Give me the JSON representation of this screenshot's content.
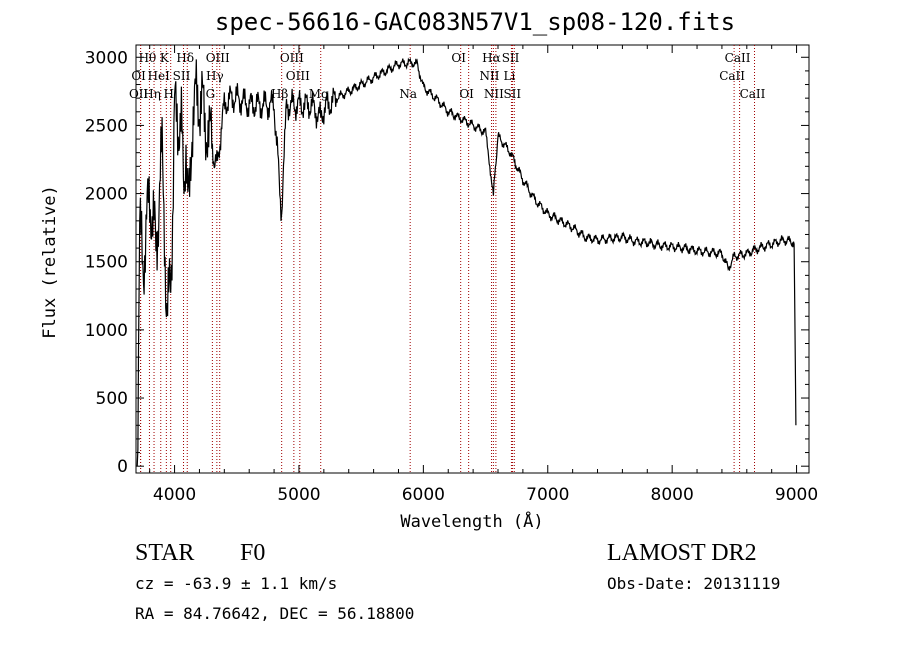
{
  "chart_data": {
    "type": "line",
    "title": "spec-56616-GAC083N57V1_sp08-120.fits",
    "xlabel": "Wavelength (Å)",
    "ylabel": "Flux (relative)",
    "xlim": [
      3690,
      9100
    ],
    "ylim": [
      -50,
      3090
    ],
    "xticks": [
      4000,
      5000,
      6000,
      7000,
      8000,
      9000
    ],
    "yticks": [
      0,
      500,
      1000,
      1500,
      2000,
      2500,
      3000
    ],
    "grid": false,
    "series": [
      {
        "name": "flux",
        "x": [
          3700,
          3720,
          3750,
          3800,
          3850,
          3900,
          3934,
          3969,
          4000,
          4050,
          4102,
          4150,
          4200,
          4250,
          4304,
          4340,
          4400,
          4450,
          4500,
          4600,
          4700,
          4800,
          4861,
          4900,
          5000,
          5100,
          5175,
          5200,
          5300,
          5400,
          5500,
          5600,
          5700,
          5800,
          5900,
          5950,
          6000,
          6100,
          6200,
          6300,
          6400,
          6500,
          6563,
          6600,
          6700,
          6800,
          6900,
          7000,
          7100,
          7200,
          7300,
          7400,
          7500,
          7600,
          7700,
          7800,
          7900,
          8000,
          8100,
          8200,
          8300,
          8400,
          8450,
          8500,
          8600,
          8700,
          8800,
          8900,
          8980,
          8995
        ],
        "y": [
          0,
          1700,
          1500,
          2000,
          1600,
          2300,
          1300,
          1200,
          2600,
          2500,
          1950,
          2650,
          2700,
          2550,
          2300,
          2200,
          2650,
          2700,
          2700,
          2650,
          2650,
          2650,
          1850,
          2650,
          2650,
          2650,
          2550,
          2620,
          2700,
          2750,
          2800,
          2850,
          2900,
          2950,
          2960,
          2950,
          2780,
          2700,
          2600,
          2550,
          2500,
          2450,
          2000,
          2420,
          2300,
          2100,
          1950,
          1850,
          1800,
          1750,
          1680,
          1660,
          1670,
          1680,
          1650,
          1640,
          1620,
          1610,
          1600,
          1580,
          1570,
          1560,
          1450,
          1540,
          1560,
          1600,
          1630,
          1660,
          1640,
          300
        ]
      }
    ],
    "line_markers": [
      {
        "label": "Hθ",
        "wl": 3798,
        "row": 0
      },
      {
        "label": "K",
        "wl": 3934,
        "row": 0
      },
      {
        "label": "Hδ",
        "wl": 4102,
        "row": 0
      },
      {
        "label": "OIII",
        "wl": 4363,
        "row": 0
      },
      {
        "label": "OIII",
        "wl": 4959,
        "row": 0
      },
      {
        "label": "OI",
        "wl": 6300,
        "row": 0
      },
      {
        "label": "Hα",
        "wl": 6563,
        "row": 0
      },
      {
        "label": "SII",
        "wl": 6717,
        "row": 0
      },
      {
        "label": "CaII",
        "wl": 8542,
        "row": 0
      },
      {
        "label": "OI",
        "wl": 3727,
        "row": 1
      },
      {
        "label": "HeI",
        "wl": 3889,
        "row": 1
      },
      {
        "label": "SII",
        "wl": 4072,
        "row": 1
      },
      {
        "label": "Hγ",
        "wl": 4340,
        "row": 1
      },
      {
        "label": "OIII",
        "wl": 5007,
        "row": 1
      },
      {
        "label": "NII",
        "wl": 6548,
        "row": 1
      },
      {
        "label": "Li",
        "wl": 6708,
        "row": 1
      },
      {
        "label": "CaII",
        "wl": 8498,
        "row": 1
      },
      {
        "label": "OII",
        "wl": 3727,
        "row": 2
      },
      {
        "label": "Hη",
        "wl": 3835,
        "row": 2
      },
      {
        "label": "H",
        "wl": 3969,
        "row": 2
      },
      {
        "label": "G",
        "wl": 4304,
        "row": 2
      },
      {
        "label": "Hβ",
        "wl": 4861,
        "row": 2
      },
      {
        "label": "Mg",
        "wl": 5175,
        "row": 2
      },
      {
        "label": "Na",
        "wl": 5894,
        "row": 2
      },
      {
        "label": "OI",
        "wl": 6364,
        "row": 2
      },
      {
        "label": "NII",
        "wl": 6583,
        "row": 2
      },
      {
        "label": "SII",
        "wl": 6731,
        "row": 2
      },
      {
        "label": "CaII",
        "wl": 8662,
        "row": 2
      }
    ]
  },
  "info": {
    "class": "STAR",
    "subclass": "F0",
    "survey": "LAMOST DR2",
    "cz": "cz = -63.9 ± 1.1 km/s",
    "obs_date": "Obs-Date: 20131119",
    "radec": "RA =  84.76642, DEC =  56.18800"
  }
}
